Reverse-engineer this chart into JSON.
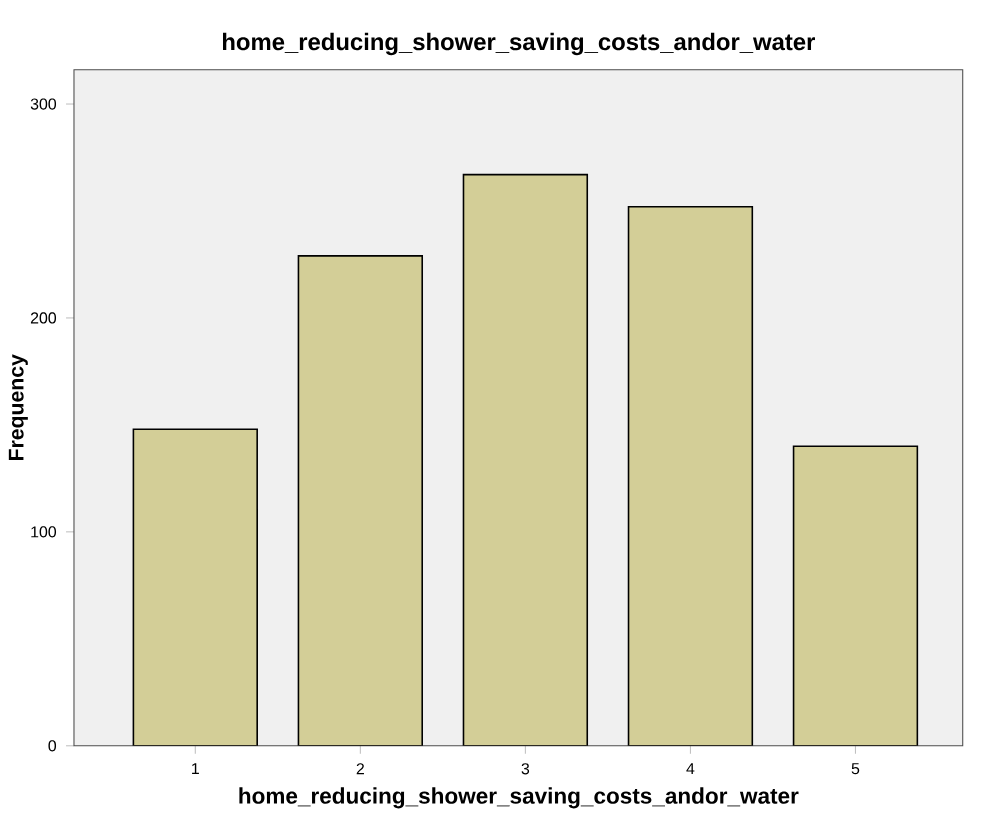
{
  "chart_data": {
    "type": "bar",
    "title": "home_reducing_shower_saving_costs_andor_water",
    "xlabel": "home_reducing_shower_saving_costs_andor_water",
    "ylabel": "Frequency",
    "categories": [
      "1",
      "2",
      "3",
      "4",
      "5"
    ],
    "values": [
      148,
      229,
      267,
      252,
      140
    ],
    "color": "#d3ce97",
    "ylim": [
      0,
      316
    ],
    "yticks": [
      0,
      100,
      200,
      300
    ],
    "grid": false
  }
}
